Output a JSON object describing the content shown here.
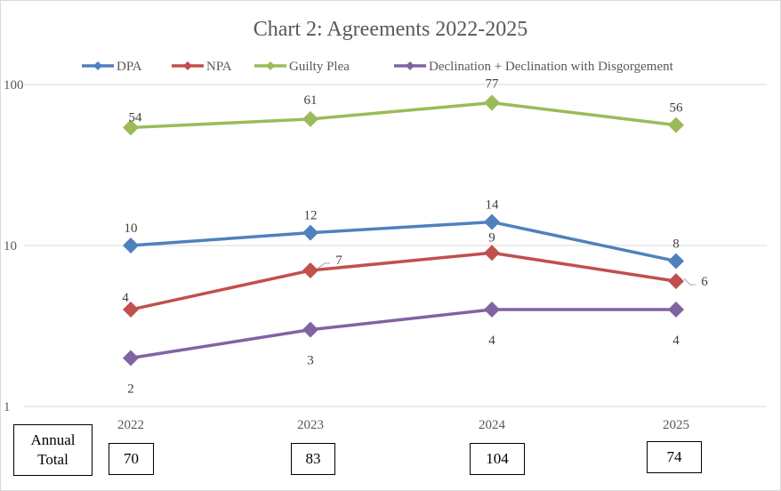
{
  "chart_data": {
    "type": "line",
    "title": "Chart 2: Agreements 2022-2025",
    "categories": [
      "2022",
      "2023",
      "2024",
      "2025"
    ],
    "y_scale": "log",
    "ylim": [
      1,
      100
    ],
    "y_ticks": [
      "1",
      "10",
      "100"
    ],
    "grid": true,
    "legend_placement": "top",
    "series": [
      {
        "name": "DPA",
        "values": [
          10,
          12,
          14,
          8
        ],
        "color": "#4F81BD"
      },
      {
        "name": "NPA",
        "values": [
          4,
          7,
          9,
          6
        ],
        "color": "#C0504D"
      },
      {
        "name": "Guilty Plea",
        "values": [
          54,
          61,
          77,
          56
        ],
        "color": "#9BBB59"
      },
      {
        "name": "Declination + Declination with Disgorgement",
        "values": [
          2,
          3,
          4,
          4
        ],
        "color": "#8064A2"
      }
    ]
  },
  "annual_total": {
    "label_line1": "Annual",
    "label_line2": "Total",
    "values": [
      "70",
      "83",
      "104",
      "74"
    ]
  }
}
